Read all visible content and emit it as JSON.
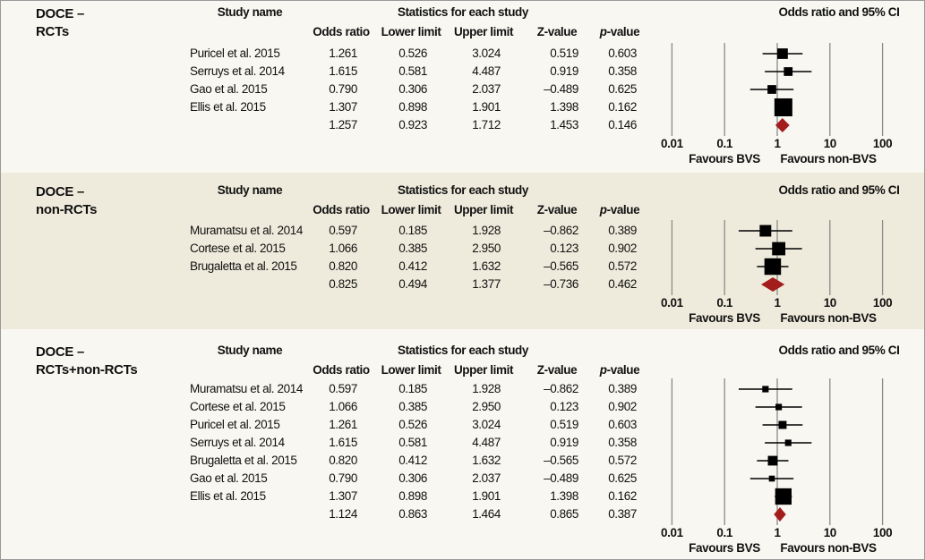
{
  "headers": {
    "study_name": "Study name",
    "statistics": "Statistics for each study",
    "odds_ratio": "Odds ratio",
    "lower_limit": "Lower limit",
    "upper_limit": "Upper limit",
    "z_value": "Z-value",
    "p_value_italic": "p",
    "p_value_rest": "-value",
    "plot_title": "Odds ratio and 95% CI",
    "favours_left": "Favours BVS",
    "favours_right": "Favours non-BVS"
  },
  "colors": {
    "diamond": "#a31d1d",
    "marker": "#000000",
    "grid": "#8a8a8a",
    "alt_panel": "#efebdc"
  },
  "chart_data": [
    {
      "type": "forest",
      "title_line1": "DOCE –",
      "title_line2": "RCTs",
      "x_scale": "log",
      "xlim": [
        0.01,
        100
      ],
      "x_ticks": [
        "0.01",
        "0.1",
        "1",
        "10",
        "100"
      ],
      "studies": [
        {
          "name": "Puricel et al. 2015",
          "or": "1.261",
          "ll": "0.526",
          "ul": "3.024",
          "z": "0.519",
          "p": "0.603",
          "weight": 19
        },
        {
          "name": "Serruys et al. 2014",
          "or": "1.615",
          "ll": "0.581",
          "ul": "4.487",
          "z": "0.919",
          "p": "0.358",
          "weight": 13
        },
        {
          "name": "Gao et al. 2015",
          "or": "0.790",
          "ll": "0.306",
          "ul": "2.037",
          "z": "–0.489",
          "p": "0.625",
          "weight": 13
        },
        {
          "name": "Ellis et al. 2015",
          "or": "1.307",
          "ll": "0.898",
          "ul": "1.901",
          "z": "1.398",
          "p": "0.162",
          "weight": 55
        }
      ],
      "pooled": {
        "or": "1.257",
        "ll": "0.923",
        "ul": "1.712",
        "z": "1.453",
        "p": "0.146"
      }
    },
    {
      "type": "forest",
      "title_line1": "DOCE –",
      "title_line2": "non-RCTs",
      "x_scale": "log",
      "xlim": [
        0.01,
        100
      ],
      "x_ticks": [
        "0.01",
        "0.1",
        "1",
        "10",
        "100"
      ],
      "studies": [
        {
          "name": "Muramatsu et al. 2014",
          "or": "0.597",
          "ll": "0.185",
          "ul": "1.928",
          "z": "–0.862",
          "p": "0.389",
          "weight": 23
        },
        {
          "name": "Cortese et al. 2015",
          "or": "1.066",
          "ll": "0.385",
          "ul": "2.950",
          "z": "0.123",
          "p": "0.902",
          "weight": 30
        },
        {
          "name": "Brugaletta et al. 2015",
          "or": "0.820",
          "ll": "0.412",
          "ul": "1.632",
          "z": "–0.565",
          "p": "0.572",
          "weight": 47
        }
      ],
      "pooled": {
        "or": "0.825",
        "ll": "0.494",
        "ul": "1.377",
        "z": "–0.736",
        "p": "0.462"
      }
    },
    {
      "type": "forest",
      "title_line1": "DOCE –",
      "title_line2": "RCTs+non-RCTs",
      "x_scale": "log",
      "xlim": [
        0.01,
        100
      ],
      "x_ticks": [
        "0.01",
        "0.1",
        "1",
        "10",
        "100"
      ],
      "studies": [
        {
          "name": "Muramatsu et al. 2014",
          "or": "0.597",
          "ll": "0.185",
          "ul": "1.928",
          "z": "–0.862",
          "p": "0.389",
          "weight": 7
        },
        {
          "name": "Cortese et al. 2015",
          "or": "1.066",
          "ll": "0.385",
          "ul": "2.950",
          "z": "0.123",
          "p": "0.902",
          "weight": 7
        },
        {
          "name": "Puricel et al. 2015",
          "or": "1.261",
          "ll": "0.526",
          "ul": "3.024",
          "z": "0.519",
          "p": "0.603",
          "weight": 11
        },
        {
          "name": "Serruys et al. 2014",
          "or": "1.615",
          "ll": "0.581",
          "ul": "4.487",
          "z": "0.919",
          "p": "0.358",
          "weight": 7
        },
        {
          "name": "Brugaletta et al. 2015",
          "or": "0.820",
          "ll": "0.412",
          "ul": "1.632",
          "z": "–0.565",
          "p": "0.572",
          "weight": 16
        },
        {
          "name": "Gao et al. 2015",
          "or": "0.790",
          "ll": "0.306",
          "ul": "2.037",
          "z": "–0.489",
          "p": "0.625",
          "weight": 6
        },
        {
          "name": "Ellis et al. 2015",
          "or": "1.307",
          "ll": "0.898",
          "ul": "1.901",
          "z": "1.398",
          "p": "0.162",
          "weight": 46
        }
      ],
      "pooled": {
        "or": "1.124",
        "ll": "0.863",
        "ul": "1.464",
        "z": "0.865",
        "p": "0.387"
      }
    }
  ]
}
